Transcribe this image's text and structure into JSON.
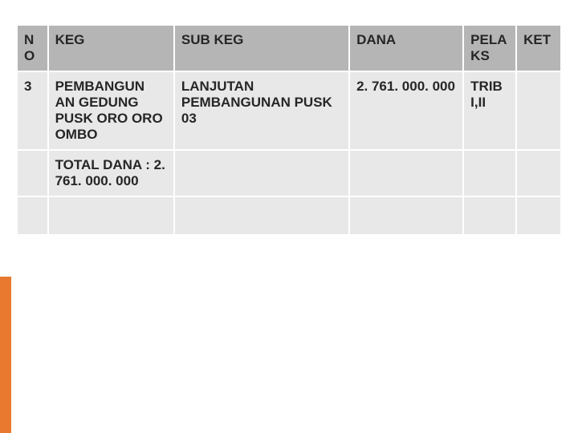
{
  "headers": {
    "no": "NO",
    "keg": "KEG",
    "subkeg": "SUB KEG",
    "dana": "DANA",
    "pelaks": "PELA KS",
    "ket": "KET"
  },
  "rows": [
    {
      "no": "3",
      "keg": "PEMBANGUN AN GEDUNG PUSK ORO ORO OMBO",
      "subkeg": "LANJUTAN PEMBANGUNAN PUSK 03",
      "dana": "2. 761. 000. 000",
      "pelaks": "TRIB I,II",
      "ket": ""
    },
    {
      "no": "",
      "keg": "TOTAL DANA : 2. 761. 000. 000",
      "subkeg": "",
      "dana": "",
      "pelaks": "",
      "ket": ""
    }
  ],
  "colors": {
    "header_bg": "#b5b5b5",
    "cell_bg": "#e8e8e8",
    "accent": "#e8792e",
    "text": "#262626"
  }
}
